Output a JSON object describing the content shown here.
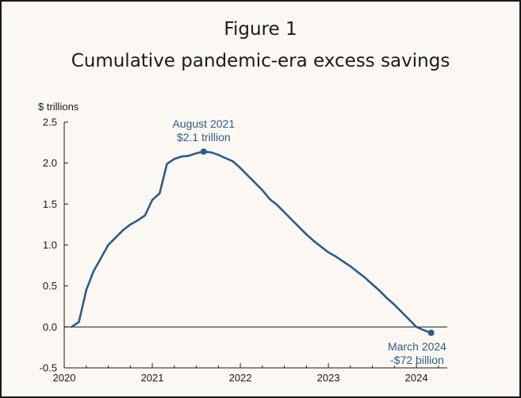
{
  "figure_label": "Figure 1",
  "title": "Cumulative pandemic-era excess savings",
  "colors": {
    "line": "#2e5b86",
    "axis": "#1a1a1a",
    "background": "#fbf8f3"
  },
  "chart_data": {
    "type": "line",
    "title": "Cumulative pandemic-era excess savings",
    "ylabel": "$ trillions",
    "xlabel": "",
    "ylim": [
      -0.5,
      2.5
    ],
    "xlim": [
      2020.0,
      2024.35
    ],
    "yticks": [
      "2.5",
      "2.0",
      "1.5",
      "1.0",
      "0.5",
      "0.0",
      "-0.5"
    ],
    "ytick_values": [
      2.5,
      2.0,
      1.5,
      1.0,
      0.5,
      0.0,
      -0.5
    ],
    "xticks": [
      "2020",
      "2021",
      "2022",
      "2023",
      "2024"
    ],
    "xtick_values": [
      2020,
      2021,
      2022,
      2023,
      2024
    ],
    "grid": false,
    "series": [
      {
        "x": [
          "2020-02",
          "2020-03",
          "2020-04",
          "2020-05",
          "2020-06",
          "2020-07",
          "2020-08",
          "2020-09",
          "2020-10",
          "2020-11",
          "2020-12",
          "2021-01",
          "2021-02",
          "2021-03",
          "2021-04",
          "2021-05",
          "2021-06",
          "2021-07",
          "2021-08",
          "2021-09",
          "2021-10",
          "2021-11",
          "2021-12",
          "2022-01",
          "2022-02",
          "2022-03",
          "2022-04",
          "2022-05",
          "2022-06",
          "2022-07",
          "2022-08",
          "2022-09",
          "2022-10",
          "2022-11",
          "2022-12",
          "2023-01",
          "2023-02",
          "2023-03",
          "2023-04",
          "2023-05",
          "2023-06",
          "2023-07",
          "2023-08",
          "2023-09",
          "2023-10",
          "2023-11",
          "2023-12",
          "2024-01",
          "2024-02",
          "2024-03"
        ],
        "values": [
          0.0,
          0.06,
          0.45,
          0.68,
          0.84,
          1.0,
          1.09,
          1.18,
          1.25,
          1.3,
          1.36,
          1.55,
          1.63,
          1.99,
          2.05,
          2.08,
          2.09,
          2.12,
          2.14,
          2.13,
          2.1,
          2.06,
          2.02,
          1.94,
          1.85,
          1.76,
          1.67,
          1.56,
          1.49,
          1.4,
          1.31,
          1.22,
          1.13,
          1.05,
          0.98,
          0.91,
          0.86,
          0.8,
          0.74,
          0.67,
          0.6,
          0.52,
          0.44,
          0.35,
          0.27,
          0.18,
          0.09,
          0.0,
          -0.04,
          -0.072
        ]
      }
    ],
    "annotations": [
      {
        "x": "2021-08",
        "y": 2.14,
        "lines": [
          "August 2021",
          "$2.1 trillion"
        ]
      },
      {
        "x": "2024-03",
        "y": -0.072,
        "lines": [
          "March 2024",
          "-$72 billion"
        ]
      }
    ]
  }
}
